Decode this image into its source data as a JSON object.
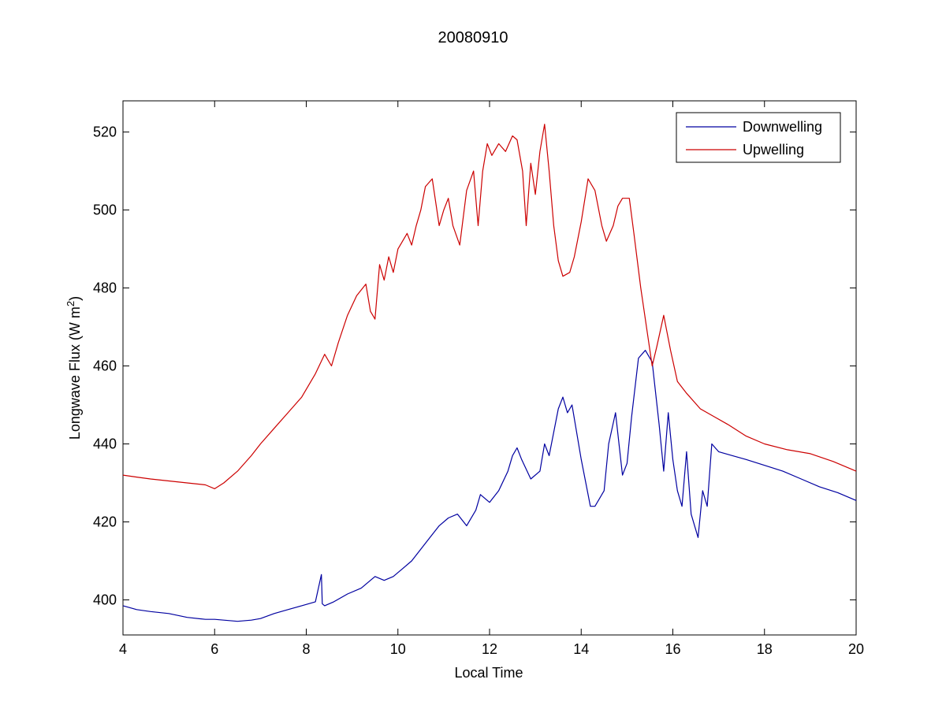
{
  "chart_data": {
    "type": "line",
    "title": "20080910",
    "xlabel": "Local Time",
    "ylabel_main": "Longwave Flux (W m",
    "ylabel_sup": "2",
    "ylabel_end": ")",
    "xlim": [
      4,
      20
    ],
    "ylim": [
      391,
      528
    ],
    "xticks": [
      4,
      6,
      8,
      10,
      12,
      14,
      16,
      18,
      20
    ],
    "yticks": [
      400,
      420,
      440,
      460,
      480,
      500,
      520
    ],
    "grid": false,
    "legend_position": "top-right",
    "series": [
      {
        "name": "Downwelling",
        "color": "#0000a0",
        "x": [
          4.0,
          4.3,
          4.6,
          5.0,
          5.4,
          5.8,
          6.0,
          6.2,
          6.5,
          6.8,
          7.0,
          7.3,
          7.6,
          7.9,
          8.2,
          8.33,
          8.35,
          8.4,
          8.6,
          8.9,
          9.2,
          9.5,
          9.7,
          9.9,
          10.1,
          10.3,
          10.5,
          10.7,
          10.9,
          11.1,
          11.3,
          11.5,
          11.7,
          11.8,
          12.0,
          12.2,
          12.4,
          12.5,
          12.6,
          12.7,
          12.9,
          13.1,
          13.2,
          13.3,
          13.5,
          13.6,
          13.7,
          13.8,
          14.0,
          14.2,
          14.3,
          14.5,
          14.6,
          14.75,
          14.9,
          15.0,
          15.1,
          15.25,
          15.4,
          15.55,
          15.7,
          15.8,
          15.9,
          16.0,
          16.1,
          16.2,
          16.3,
          16.4,
          16.55,
          16.65,
          16.75,
          16.85,
          17.0,
          17.3,
          17.6,
          18.0,
          18.4,
          18.8,
          19.2,
          19.6,
          20.0
        ],
        "y": [
          398.5,
          397.5,
          397.0,
          396.5,
          395.5,
          395.0,
          395.0,
          394.8,
          394.5,
          394.8,
          395.2,
          396.5,
          397.5,
          398.5,
          399.5,
          406.5,
          399,
          398.5,
          399.5,
          401.5,
          403,
          406,
          405,
          406,
          408,
          410,
          413,
          416,
          419,
          421,
          422,
          419,
          423,
          427,
          425,
          428,
          433,
          437,
          439,
          436,
          431,
          433,
          440,
          437,
          449,
          452,
          448,
          450,
          436,
          424,
          424,
          428,
          440,
          448,
          432,
          435,
          447,
          462,
          464,
          461,
          445,
          433,
          448,
          436,
          428,
          424,
          438,
          422,
          416,
          428,
          424,
          440,
          438,
          437,
          436,
          434.5,
          433,
          431,
          429,
          427.5,
          425.5
        ]
      },
      {
        "name": "Upwelling",
        "color": "#cc0000",
        "x": [
          4.0,
          4.3,
          4.6,
          5.0,
          5.4,
          5.8,
          6.0,
          6.2,
          6.5,
          6.8,
          7.0,
          7.3,
          7.6,
          7.9,
          8.2,
          8.4,
          8.55,
          8.7,
          8.9,
          9.1,
          9.3,
          9.4,
          9.5,
          9.6,
          9.7,
          9.8,
          9.9,
          10.0,
          10.1,
          10.2,
          10.3,
          10.4,
          10.5,
          10.6,
          10.75,
          10.9,
          11.0,
          11.1,
          11.2,
          11.35,
          11.5,
          11.65,
          11.75,
          11.85,
          11.95,
          12.05,
          12.2,
          12.35,
          12.5,
          12.6,
          12.72,
          12.8,
          12.9,
          13.0,
          13.1,
          13.2,
          13.3,
          13.4,
          13.5,
          13.6,
          13.75,
          13.85,
          14.0,
          14.15,
          14.3,
          14.45,
          14.55,
          14.7,
          14.8,
          14.9,
          15.05,
          15.15,
          15.3,
          15.45,
          15.55,
          15.65,
          15.8,
          15.95,
          16.1,
          16.3,
          16.6,
          16.9,
          17.2,
          17.6,
          18.0,
          18.5,
          19.0,
          19.5,
          20.0
        ],
        "y": [
          432,
          431.5,
          431,
          430.5,
          430,
          429.5,
          428.5,
          430,
          433,
          437,
          440,
          444,
          448,
          452,
          458,
          463,
          460,
          466,
          473,
          478,
          481,
          474,
          472,
          486,
          482,
          488,
          484,
          490,
          492,
          494,
          491,
          496,
          500,
          506,
          508,
          496,
          500,
          503,
          496,
          491,
          505,
          510,
          496,
          510,
          517,
          514,
          517,
          515,
          519,
          518,
          510,
          496,
          512,
          504,
          515,
          522,
          510,
          496,
          487,
          483,
          484,
          488,
          497,
          508,
          505,
          496,
          492,
          496,
          501,
          503,
          503,
          494,
          480,
          468,
          460,
          465,
          473,
          464,
          456,
          453,
          449,
          447,
          445,
          442,
          440,
          438.5,
          437.5,
          435.5,
          433
        ]
      }
    ]
  }
}
